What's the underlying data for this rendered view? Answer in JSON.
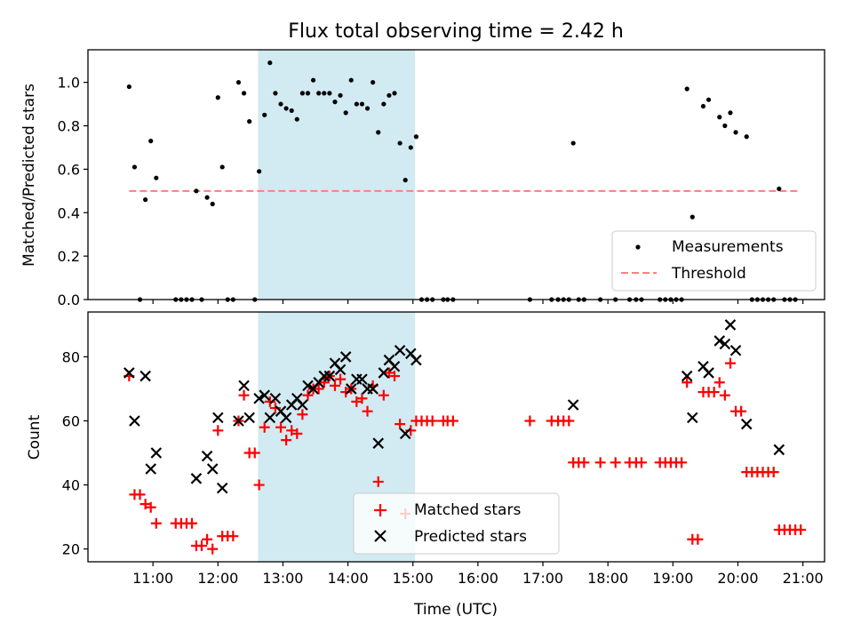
{
  "title": "Flux total observing time = 2.42 h",
  "colors": {
    "measurement": "#000000",
    "threshold": "#ff7f7f",
    "matched": "#ff0000",
    "predicted": "#000000",
    "span": "#add8e6"
  },
  "chart_data": [
    {
      "type": "scatter",
      "ylabel": "Matched/Predicted stars",
      "xlim": [
        "10:00",
        "21:20"
      ],
      "ylim": [
        0,
        1.15
      ],
      "x_tick_labels": [
        "11:00",
        "12:00",
        "13:00",
        "14:00",
        "15:00",
        "16:00",
        "17:00",
        "18:00",
        "19:00",
        "20:00",
        "21:00"
      ],
      "y_tick_labels": [
        "0.0",
        "0.2",
        "0.4",
        "0.6",
        "0.8",
        "1.0"
      ],
      "y_ticks": [
        0,
        0.2,
        0.4,
        0.6,
        0.8,
        1.0
      ],
      "shaded_span": [
        "12:37",
        "15:02"
      ],
      "legend": {
        "position": "lower right",
        "entries": [
          "Measurements",
          "Threshold"
        ]
      },
      "threshold": {
        "value": 0.5,
        "x": [
          "10:38",
          "20:58"
        ]
      },
      "series": [
        {
          "name": "Measurements",
          "points": [
            [
              "10:38",
              0.98
            ],
            [
              "10:43",
              0.61
            ],
            [
              "10:48",
              0.0
            ],
            [
              "10:53",
              0.46
            ],
            [
              "10:58",
              0.73
            ],
            [
              "11:03",
              0.56
            ],
            [
              "11:21",
              0.0
            ],
            [
              "11:26",
              0.0
            ],
            [
              "11:31",
              0.0
            ],
            [
              "11:36",
              0.0
            ],
            [
              "11:40",
              0.5
            ],
            [
              "11:45",
              0.0
            ],
            [
              "11:50",
              0.47
            ],
            [
              "11:55",
              0.44
            ],
            [
              "12:00",
              0.93
            ],
            [
              "12:04",
              0.61
            ],
            [
              "12:09",
              0.0
            ],
            [
              "12:14",
              0.0
            ],
            [
              "12:19",
              1.0
            ],
            [
              "12:24",
              0.95
            ],
            [
              "12:29",
              0.82
            ],
            [
              "12:34",
              0.0
            ],
            [
              "12:38",
              0.59
            ],
            [
              "12:43",
              0.85
            ],
            [
              "12:48",
              1.09
            ],
            [
              "12:53",
              0.95
            ],
            [
              "12:58",
              0.9
            ],
            [
              "13:03",
              0.88
            ],
            [
              "13:08",
              0.87
            ],
            [
              "13:13",
              0.83
            ],
            [
              "13:18",
              0.95
            ],
            [
              "13:23",
              0.95
            ],
            [
              "13:28",
              1.01
            ],
            [
              "13:33",
              0.95
            ],
            [
              "13:38",
              0.95
            ],
            [
              "13:43",
              0.95
            ],
            [
              "13:48",
              0.91
            ],
            [
              "13:53",
              0.94
            ],
            [
              "13:58",
              0.86
            ],
            [
              "14:03",
              1.01
            ],
            [
              "14:08",
              0.9
            ],
            [
              "14:13",
              0.9
            ],
            [
              "14:18",
              0.88
            ],
            [
              "14:23",
              1.0
            ],
            [
              "14:28",
              0.77
            ],
            [
              "14:33",
              0.9
            ],
            [
              "14:38",
              0.94
            ],
            [
              "14:43",
              0.95
            ],
            [
              "14:48",
              0.72
            ],
            [
              "14:53",
              0.55
            ],
            [
              "14:58",
              0.7
            ],
            [
              "15:03",
              0.75
            ],
            [
              "15:08",
              0.0
            ],
            [
              "15:13",
              0.0
            ],
            [
              "15:18",
              0.0
            ],
            [
              "15:28",
              0.0
            ],
            [
              "15:32",
              0.0
            ],
            [
              "15:37",
              0.0
            ],
            [
              "16:48",
              0.0
            ],
            [
              "17:08",
              0.0
            ],
            [
              "17:14",
              0.0
            ],
            [
              "17:19",
              0.0
            ],
            [
              "17:24",
              0.0
            ],
            [
              "17:28",
              0.72
            ],
            [
              "17:33",
              0.0
            ],
            [
              "17:38",
              0.0
            ],
            [
              "17:53",
              0.0
            ],
            [
              "18:07",
              0.0
            ],
            [
              "18:20",
              0.0
            ],
            [
              "18:26",
              0.0
            ],
            [
              "18:31",
              0.0
            ],
            [
              "18:48",
              0.0
            ],
            [
              "18:53",
              0.0
            ],
            [
              "18:58",
              0.0
            ],
            [
              "19:03",
              0.0
            ],
            [
              "19:08",
              0.0
            ],
            [
              "19:13",
              0.97
            ],
            [
              "19:18",
              0.38
            ],
            [
              "19:28",
              0.89
            ],
            [
              "19:33",
              0.92
            ],
            [
              "19:43",
              0.84
            ],
            [
              "19:48",
              0.8
            ],
            [
              "19:53",
              0.86
            ],
            [
              "19:58",
              0.77
            ],
            [
              "20:08",
              0.75
            ],
            [
              "20:13",
              0.0
            ],
            [
              "20:18",
              0.0
            ],
            [
              "20:23",
              0.0
            ],
            [
              "20:28",
              0.0
            ],
            [
              "20:33",
              0.0
            ],
            [
              "20:38",
              0.51
            ],
            [
              "20:43",
              0.0
            ],
            [
              "20:48",
              0.0
            ],
            [
              "20:53",
              0.0
            ]
          ]
        }
      ]
    },
    {
      "type": "scatter",
      "title": "",
      "xlabel": "Time (UTC)",
      "ylabel": "Count",
      "xlim": [
        "10:00",
        "21:20"
      ],
      "ylim": [
        16,
        94
      ],
      "x_tick_labels": [
        "11:00",
        "12:00",
        "13:00",
        "14:00",
        "15:00",
        "16:00",
        "17:00",
        "18:00",
        "19:00",
        "20:00",
        "21:00"
      ],
      "y_tick_labels": [
        "20",
        "40",
        "60",
        "80"
      ],
      "y_ticks": [
        20,
        40,
        60,
        80
      ],
      "shaded_span": [
        "12:37",
        "15:02"
      ],
      "legend": {
        "position": "lower center",
        "entries": [
          "Matched stars",
          "Predicted stars"
        ]
      },
      "series": [
        {
          "name": "Matched stars",
          "points": [
            [
              "10:38",
              74
            ],
            [
              "10:43",
              37
            ],
            [
              "10:48",
              37
            ],
            [
              "10:53",
              34
            ],
            [
              "10:58",
              33
            ],
            [
              "11:03",
              28
            ],
            [
              "11:21",
              28
            ],
            [
              "11:26",
              28
            ],
            [
              "11:31",
              28
            ],
            [
              "11:36",
              28
            ],
            [
              "11:40",
              21
            ],
            [
              "11:45",
              21
            ],
            [
              "11:50",
              23
            ],
            [
              "11:55",
              20
            ],
            [
              "12:00",
              57
            ],
            [
              "12:04",
              24
            ],
            [
              "12:09",
              24
            ],
            [
              "12:14",
              24
            ],
            [
              "12:19",
              60
            ],
            [
              "12:24",
              68
            ],
            [
              "12:29",
              50
            ],
            [
              "12:34",
              50
            ],
            [
              "12:38",
              40
            ],
            [
              "12:43",
              58
            ],
            [
              "12:48",
              66
            ],
            [
              "12:53",
              64
            ],
            [
              "12:58",
              58
            ],
            [
              "13:03",
              54
            ],
            [
              "13:08",
              57
            ],
            [
              "13:13",
              56
            ],
            [
              "13:18",
              62
            ],
            [
              "13:23",
              68
            ],
            [
              "13:28",
              70
            ],
            [
              "13:33",
              70
            ],
            [
              "13:38",
              72
            ],
            [
              "13:43",
              74
            ],
            [
              "13:48",
              71
            ],
            [
              "13:53",
              73
            ],
            [
              "13:58",
              69
            ],
            [
              "14:03",
              70
            ],
            [
              "14:08",
              66
            ],
            [
              "14:13",
              67
            ],
            [
              "14:18",
              63
            ],
            [
              "14:23",
              71
            ],
            [
              "14:28",
              41
            ],
            [
              "14:33",
              68
            ],
            [
              "14:38",
              75
            ],
            [
              "14:43",
              74
            ],
            [
              "14:48",
              59
            ],
            [
              "14:53",
              31
            ],
            [
              "14:58",
              57
            ],
            [
              "15:03",
              60
            ],
            [
              "15:08",
              60
            ],
            [
              "15:13",
              60
            ],
            [
              "15:18",
              60
            ],
            [
              "15:28",
              60
            ],
            [
              "15:32",
              60
            ],
            [
              "15:37",
              60
            ],
            [
              "16:48",
              60
            ],
            [
              "17:08",
              60
            ],
            [
              "17:14",
              60
            ],
            [
              "17:19",
              60
            ],
            [
              "17:24",
              60
            ],
            [
              "17:28",
              47
            ],
            [
              "17:33",
              47
            ],
            [
              "17:38",
              47
            ],
            [
              "17:53",
              47
            ],
            [
              "18:07",
              47
            ],
            [
              "18:20",
              47
            ],
            [
              "18:26",
              47
            ],
            [
              "18:31",
              47
            ],
            [
              "18:48",
              47
            ],
            [
              "18:53",
              47
            ],
            [
              "18:58",
              47
            ],
            [
              "19:03",
              47
            ],
            [
              "19:08",
              47
            ],
            [
              "19:13",
              72
            ],
            [
              "19:18",
              23
            ],
            [
              "19:23",
              23
            ],
            [
              "19:28",
              69
            ],
            [
              "19:33",
              69
            ],
            [
              "19:38",
              69
            ],
            [
              "19:43",
              72
            ],
            [
              "19:48",
              68
            ],
            [
              "19:53",
              78
            ],
            [
              "19:58",
              63
            ],
            [
              "20:03",
              63
            ],
            [
              "20:08",
              44
            ],
            [
              "20:13",
              44
            ],
            [
              "20:18",
              44
            ],
            [
              "20:23",
              44
            ],
            [
              "20:28",
              44
            ],
            [
              "20:33",
              44
            ],
            [
              "20:38",
              26
            ],
            [
              "20:43",
              26
            ],
            [
              "20:48",
              26
            ],
            [
              "20:53",
              26
            ],
            [
              "20:58",
              26
            ]
          ]
        },
        {
          "name": "Predicted stars",
          "points": [
            [
              "10:38",
              75
            ],
            [
              "10:43",
              60
            ],
            [
              "10:53",
              74
            ],
            [
              "10:58",
              45
            ],
            [
              "11:03",
              50
            ],
            [
              "11:40",
              42
            ],
            [
              "11:50",
              49
            ],
            [
              "11:55",
              45
            ],
            [
              "12:00",
              61
            ],
            [
              "12:04",
              39
            ],
            [
              "12:19",
              60
            ],
            [
              "12:24",
              71
            ],
            [
              "12:29",
              61
            ],
            [
              "12:38",
              67
            ],
            [
              "12:43",
              68
            ],
            [
              "12:48",
              61
            ],
            [
              "12:53",
              67
            ],
            [
              "12:58",
              63
            ],
            [
              "13:03",
              61
            ],
            [
              "13:08",
              65
            ],
            [
              "13:13",
              67
            ],
            [
              "13:18",
              65
            ],
            [
              "13:23",
              71
            ],
            [
              "13:28",
              70
            ],
            [
              "13:33",
              72
            ],
            [
              "13:38",
              74
            ],
            [
              "13:43",
              74
            ],
            [
              "13:48",
              78
            ],
            [
              "13:53",
              76
            ],
            [
              "13:58",
              80
            ],
            [
              "14:03",
              70
            ],
            [
              "14:08",
              73
            ],
            [
              "14:13",
              73
            ],
            [
              "14:18",
              70
            ],
            [
              "14:23",
              70
            ],
            [
              "14:28",
              53
            ],
            [
              "14:33",
              75
            ],
            [
              "14:38",
              79
            ],
            [
              "14:43",
              77
            ],
            [
              "14:48",
              82
            ],
            [
              "14:53",
              56
            ],
            [
              "14:58",
              81
            ],
            [
              "15:03",
              79
            ],
            [
              "17:28",
              65
            ],
            [
              "19:13",
              74
            ],
            [
              "19:18",
              61
            ],
            [
              "19:28",
              77
            ],
            [
              "19:33",
              75
            ],
            [
              "19:43",
              85
            ],
            [
              "19:48",
              84
            ],
            [
              "19:53",
              90
            ],
            [
              "19:58",
              82
            ],
            [
              "20:08",
              59
            ],
            [
              "20:38",
              51
            ]
          ]
        }
      ]
    }
  ]
}
